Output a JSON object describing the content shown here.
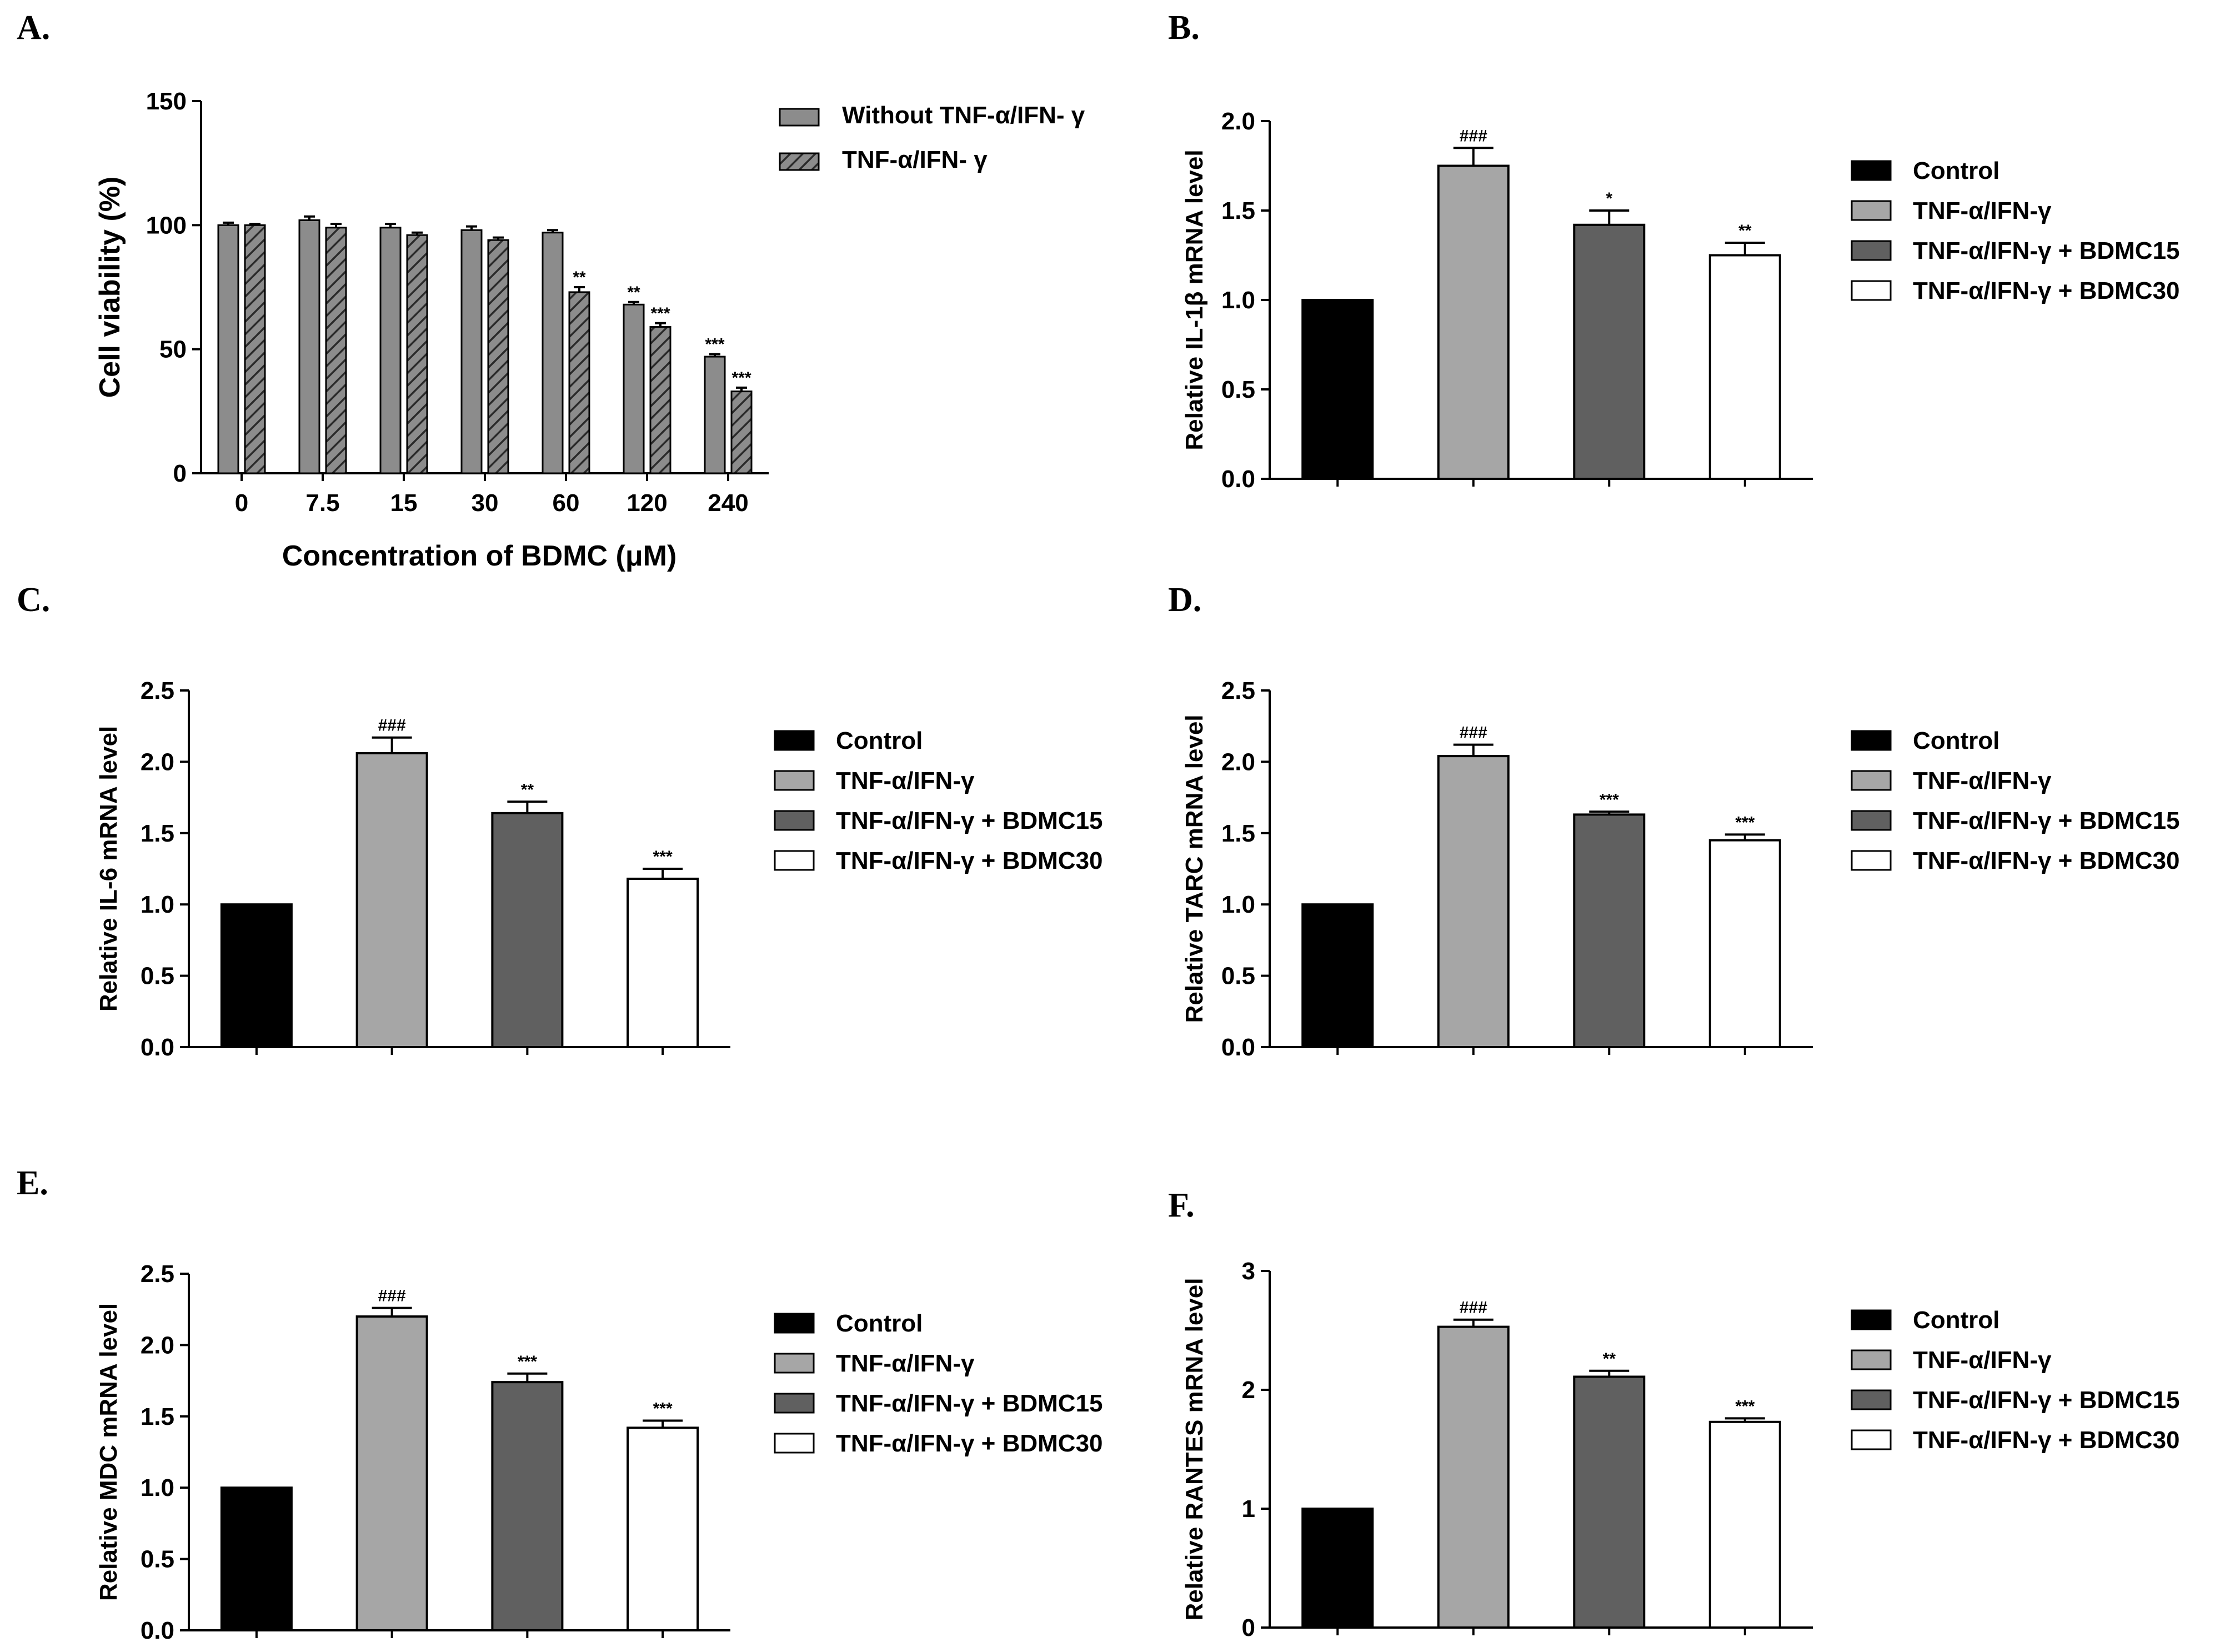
{
  "chart_data": [
    {
      "panel": "A.",
      "type": "bar",
      "categories": [
        "0",
        "7.5",
        "15",
        "30",
        "60",
        "120",
        "240"
      ],
      "series": [
        {
          "name": "Without TNF-α/IFN- γ",
          "values": [
            100,
            102,
            99,
            98,
            97,
            68,
            47
          ],
          "errors": [
            1,
            1.5,
            1.5,
            1.5,
            1,
            1,
            1
          ],
          "sig": [
            "",
            "",
            "",
            "",
            "",
            "**",
            "***"
          ],
          "fill": "#8c8c8c",
          "pattern": "solid"
        },
        {
          "name": "TNF-α/IFN- γ",
          "values": [
            100,
            99,
            96,
            94,
            73,
            59,
            33
          ],
          "errors": [
            0.5,
            1.5,
            1,
            1,
            2,
            1.5,
            1.5
          ],
          "sig": [
            "",
            "",
            "",
            "",
            "**",
            "***",
            "***"
          ],
          "fill": "#8c8c8c",
          "pattern": "hatch"
        }
      ],
      "xlabel": "Concentration of BDMC (μM)",
      "ylabel": "Cell viability (%)",
      "ylim": [
        0,
        150
      ],
      "yticks": [
        "0",
        "50",
        "100",
        "150"
      ],
      "legend": "right"
    },
    {
      "panel": "B.",
      "type": "bar",
      "categories": [
        "Control",
        "TNF-α/IFN-γ",
        "TNF-α/IFN-γ + BDMC15",
        "TNF-α/IFN-γ + BDMC30"
      ],
      "values": [
        1.0,
        1.75,
        1.42,
        1.25
      ],
      "errors": [
        0,
        0.1,
        0.08,
        0.07
      ],
      "sig": [
        "",
        "###",
        "*",
        "**"
      ],
      "ylabel": "Relative IL-1β mRNA level",
      "ylim": [
        0,
        2.0
      ],
      "yticks": [
        "0.0",
        "0.5",
        "1.0",
        "1.5",
        "2.0"
      ],
      "legend": "right"
    },
    {
      "panel": "C.",
      "type": "bar",
      "categories": [
        "Control",
        "TNF-α/IFN-γ",
        "TNF-α/IFN-γ + BDMC15",
        "TNF-α/IFN-γ + BDMC30"
      ],
      "values": [
        1.0,
        2.06,
        1.64,
        1.18
      ],
      "errors": [
        0,
        0.11,
        0.08,
        0.07
      ],
      "sig": [
        "",
        "###",
        "**",
        "***"
      ],
      "ylabel": "Relative IL-6 mRNA level",
      "ylim": [
        0,
        2.5
      ],
      "yticks": [
        "0.0",
        "0.5",
        "1.0",
        "1.5",
        "2.0",
        "2.5"
      ],
      "legend": "right"
    },
    {
      "panel": "D.",
      "type": "bar",
      "categories": [
        "Control",
        "TNF-α/IFN-γ",
        "TNF-α/IFN-γ + BDMC15",
        "TNF-α/IFN-γ + BDMC30"
      ],
      "values": [
        1.0,
        2.04,
        1.63,
        1.45
      ],
      "errors": [
        0,
        0.08,
        0.02,
        0.04
      ],
      "sig": [
        "",
        "###",
        "***",
        "***"
      ],
      "ylabel": "Relative TARC mRNA level",
      "ylim": [
        0,
        2.5
      ],
      "yticks": [
        "0.0",
        "0.5",
        "1.0",
        "1.5",
        "2.0",
        "2.5"
      ],
      "legend": "right"
    },
    {
      "panel": "E.",
      "type": "bar",
      "categories": [
        "Control",
        "TNF-α/IFN-γ",
        "TNF-α/IFN-γ + BDMC15",
        "TNF-α/IFN-γ + BDMC30"
      ],
      "values": [
        1.0,
        2.2,
        1.74,
        1.42
      ],
      "errors": [
        0,
        0.06,
        0.06,
        0.05
      ],
      "sig": [
        "",
        "###",
        "***",
        "***"
      ],
      "ylabel": "Relative MDC mRNA level",
      "ylim": [
        0,
        2.5
      ],
      "yticks": [
        "0.0",
        "0.5",
        "1.0",
        "1.5",
        "2.0",
        "2.5"
      ],
      "legend": "right"
    },
    {
      "panel": "F.",
      "type": "bar",
      "categories": [
        "Control",
        "TNF-α/IFN-γ",
        "TNF-α/IFN-γ + BDMC15",
        "TNF-α/IFN-γ + BDMC30"
      ],
      "values": [
        1.0,
        2.53,
        2.11,
        1.73
      ],
      "errors": [
        0,
        0.06,
        0.05,
        0.03
      ],
      "sig": [
        "",
        "###",
        "**",
        "***"
      ],
      "ylabel": "Relative RANTES mRNA level",
      "ylim": [
        0,
        3
      ],
      "yticks": [
        "0",
        "1",
        "2",
        "3"
      ],
      "legend": "right"
    }
  ],
  "colors": {
    "control": "#000000",
    "tnf": "#a6a6a6",
    "bdmc15": "#606060",
    "bdmc30": "#ffffff",
    "panelA_bar": "#8c8c8c"
  }
}
